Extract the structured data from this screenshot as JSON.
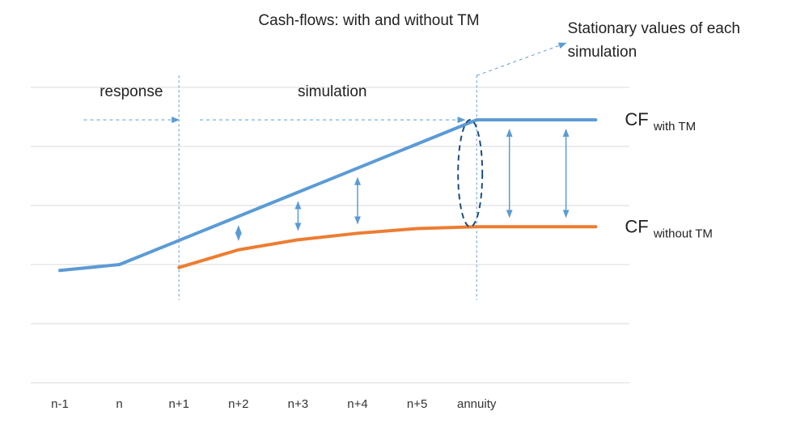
{
  "chart_data": {
    "type": "line",
    "title": "Cash-flows: with and without TM",
    "categories": [
      "n-1",
      "n",
      "n+1",
      "n+2",
      "n+3",
      "n+4",
      "n+5",
      "annuity",
      "",
      ""
    ],
    "xlabel": "",
    "ylabel": "",
    "ylim": [
      0,
      6
    ],
    "grid": true,
    "series": [
      {
        "name": "CF with TM",
        "label_main": "CF",
        "label_sub": "with TM",
        "color": "#5B9BD5",
        "x": [
          0,
          1,
          7,
          8,
          9
        ],
        "y": [
          1.9,
          2.0,
          4.45,
          4.45,
          4.45
        ]
      },
      {
        "name": "CF without TM",
        "label_main": "CF",
        "label_sub": "without TM",
        "color": "#ED7D31",
        "x": [
          2,
          3,
          4,
          5,
          6,
          7,
          8,
          9
        ],
        "y": [
          1.95,
          2.25,
          2.42,
          2.53,
          2.61,
          2.64,
          2.64,
          2.64
        ]
      }
    ],
    "phases": [
      {
        "label": "response",
        "from": 0.4,
        "to": 2.0
      },
      {
        "label": "simulation",
        "from": 2.35,
        "to": 6.8
      }
    ],
    "phase_boundaries": [
      2,
      7
    ],
    "gap_arrows_x": [
      3,
      4,
      5,
      7.55,
      8.5
    ],
    "annotation": "Stationary values of each simulation",
    "annotation_lines": [
      "Stationary values of each",
      "simulation"
    ]
  }
}
